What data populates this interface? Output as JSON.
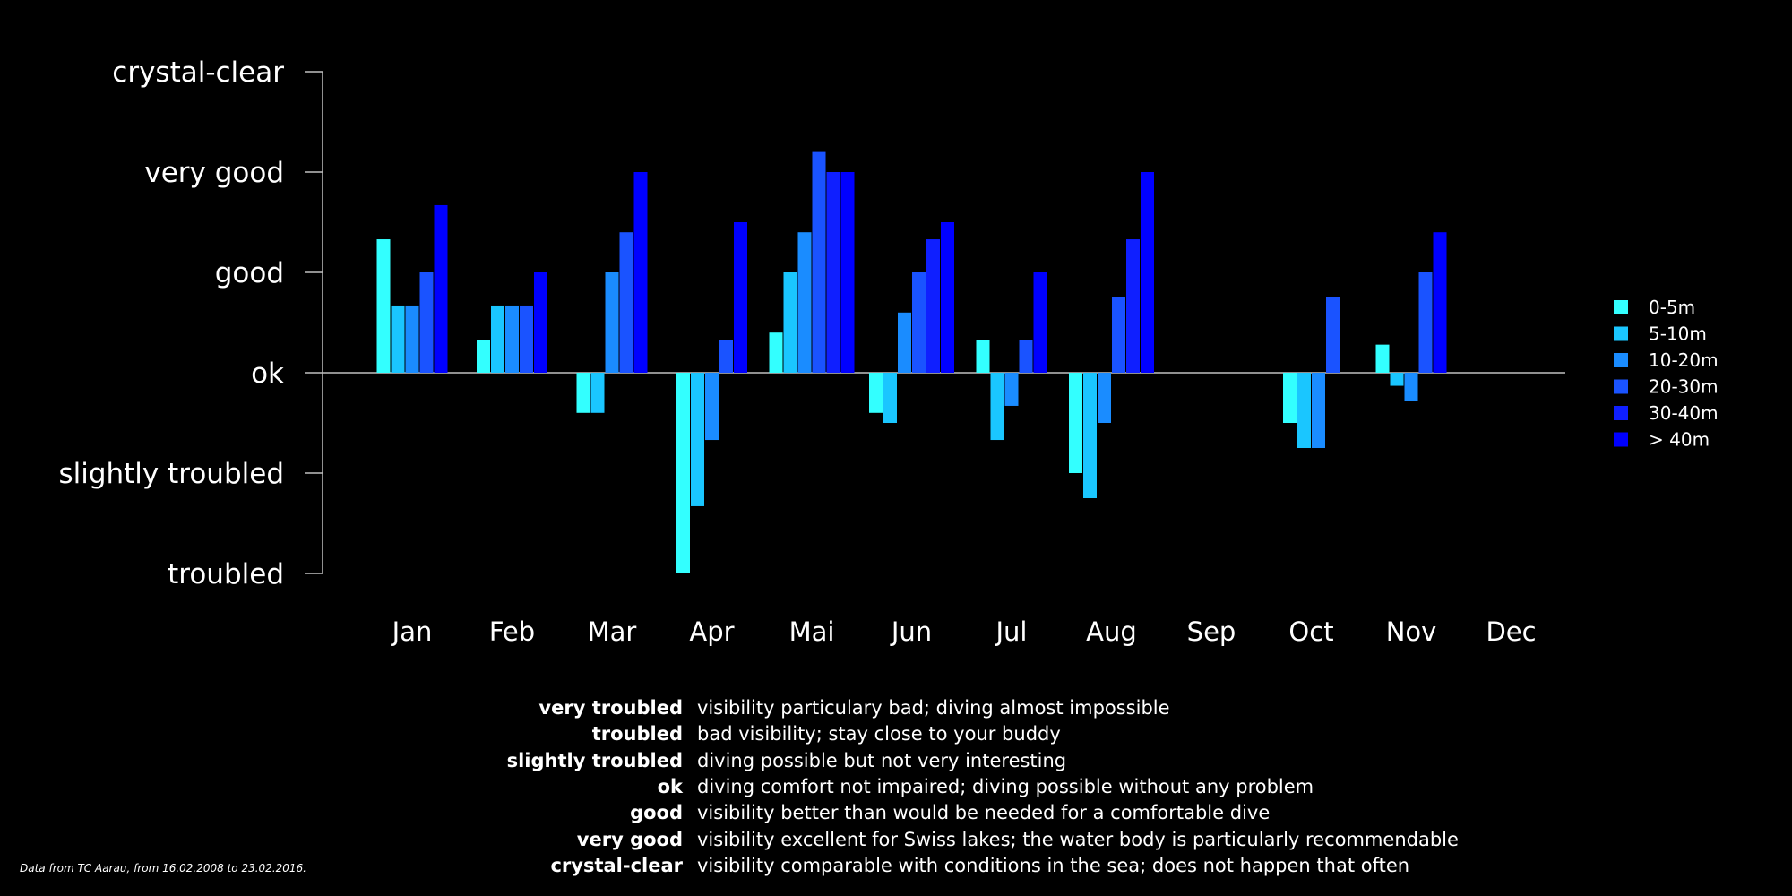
{
  "chart_data": {
    "type": "bar",
    "categories": [
      "Jan",
      "Feb",
      "Mar",
      "Apr",
      "Mai",
      "Jun",
      "Jul",
      "Aug",
      "Sep",
      "Oct",
      "Nov",
      "Dec"
    ],
    "y_tick_labels": [
      "troubled",
      "slightly troubled",
      "ok",
      "good",
      "very good",
      "crystal-clear"
    ],
    "y_tick_values": [
      -2,
      -1,
      0,
      1,
      2,
      3
    ],
    "ylim": [
      -2,
      3
    ],
    "baseline": 0,
    "series": [
      {
        "name": "0-5m",
        "color": "#33ffff",
        "values": [
          1.33,
          0.33,
          -0.4,
          -2.0,
          0.4,
          -0.4,
          0.33,
          -1.0,
          null,
          -0.5,
          0.28,
          null
        ]
      },
      {
        "name": "5-10m",
        "color": "#1ac6ff",
        "values": [
          0.67,
          0.67,
          -0.4,
          -1.33,
          1.0,
          -0.5,
          -0.67,
          -1.25,
          null,
          -0.75,
          -0.13,
          null
        ]
      },
      {
        "name": "10-20m",
        "color": "#1a8cff",
        "values": [
          0.67,
          0.67,
          1.0,
          -0.67,
          1.4,
          0.6,
          -0.33,
          -0.5,
          null,
          -0.75,
          -0.28,
          null
        ]
      },
      {
        "name": "20-30m",
        "color": "#1a53ff",
        "values": [
          1.0,
          0.67,
          1.4,
          0.33,
          2.2,
          1.0,
          0.33,
          0.75,
          null,
          0.75,
          1.0,
          null
        ]
      },
      {
        "name": "30-40m",
        "color": "#0f1fff",
        "values": [
          null,
          null,
          null,
          null,
          2.0,
          1.33,
          null,
          1.33,
          null,
          null,
          null,
          null
        ]
      },
      {
        "name": "> 40m",
        "color": "#0000ff",
        "values": [
          1.67,
          1.0,
          2.0,
          1.5,
          2.0,
          1.5,
          1.0,
          2.0,
          null,
          null,
          1.4,
          null
        ]
      }
    ],
    "legend_position": "right",
    "grid": false
  },
  "definitions": [
    {
      "term": "very troubled",
      "desc": "visibility particulary bad; diving almost impossible"
    },
    {
      "term": "troubled",
      "desc": "bad visibility; stay close to your buddy"
    },
    {
      "term": "slightly troubled",
      "desc": "diving possible but not very interesting"
    },
    {
      "term": "ok",
      "desc": "diving comfort not impaired; diving possible without any problem"
    },
    {
      "term": "good",
      "desc": "visibility better than would be needed for a comfortable dive"
    },
    {
      "term": "very good",
      "desc": "visibility excellent for Swiss lakes; the water body is particularly recommendable"
    },
    {
      "term": "crystal-clear",
      "desc": "visibility comparable with conditions in the sea; does not happen that often"
    }
  ],
  "source_note": "Data from TC Aarau, from 16.02.2008 to 23.02.2016."
}
